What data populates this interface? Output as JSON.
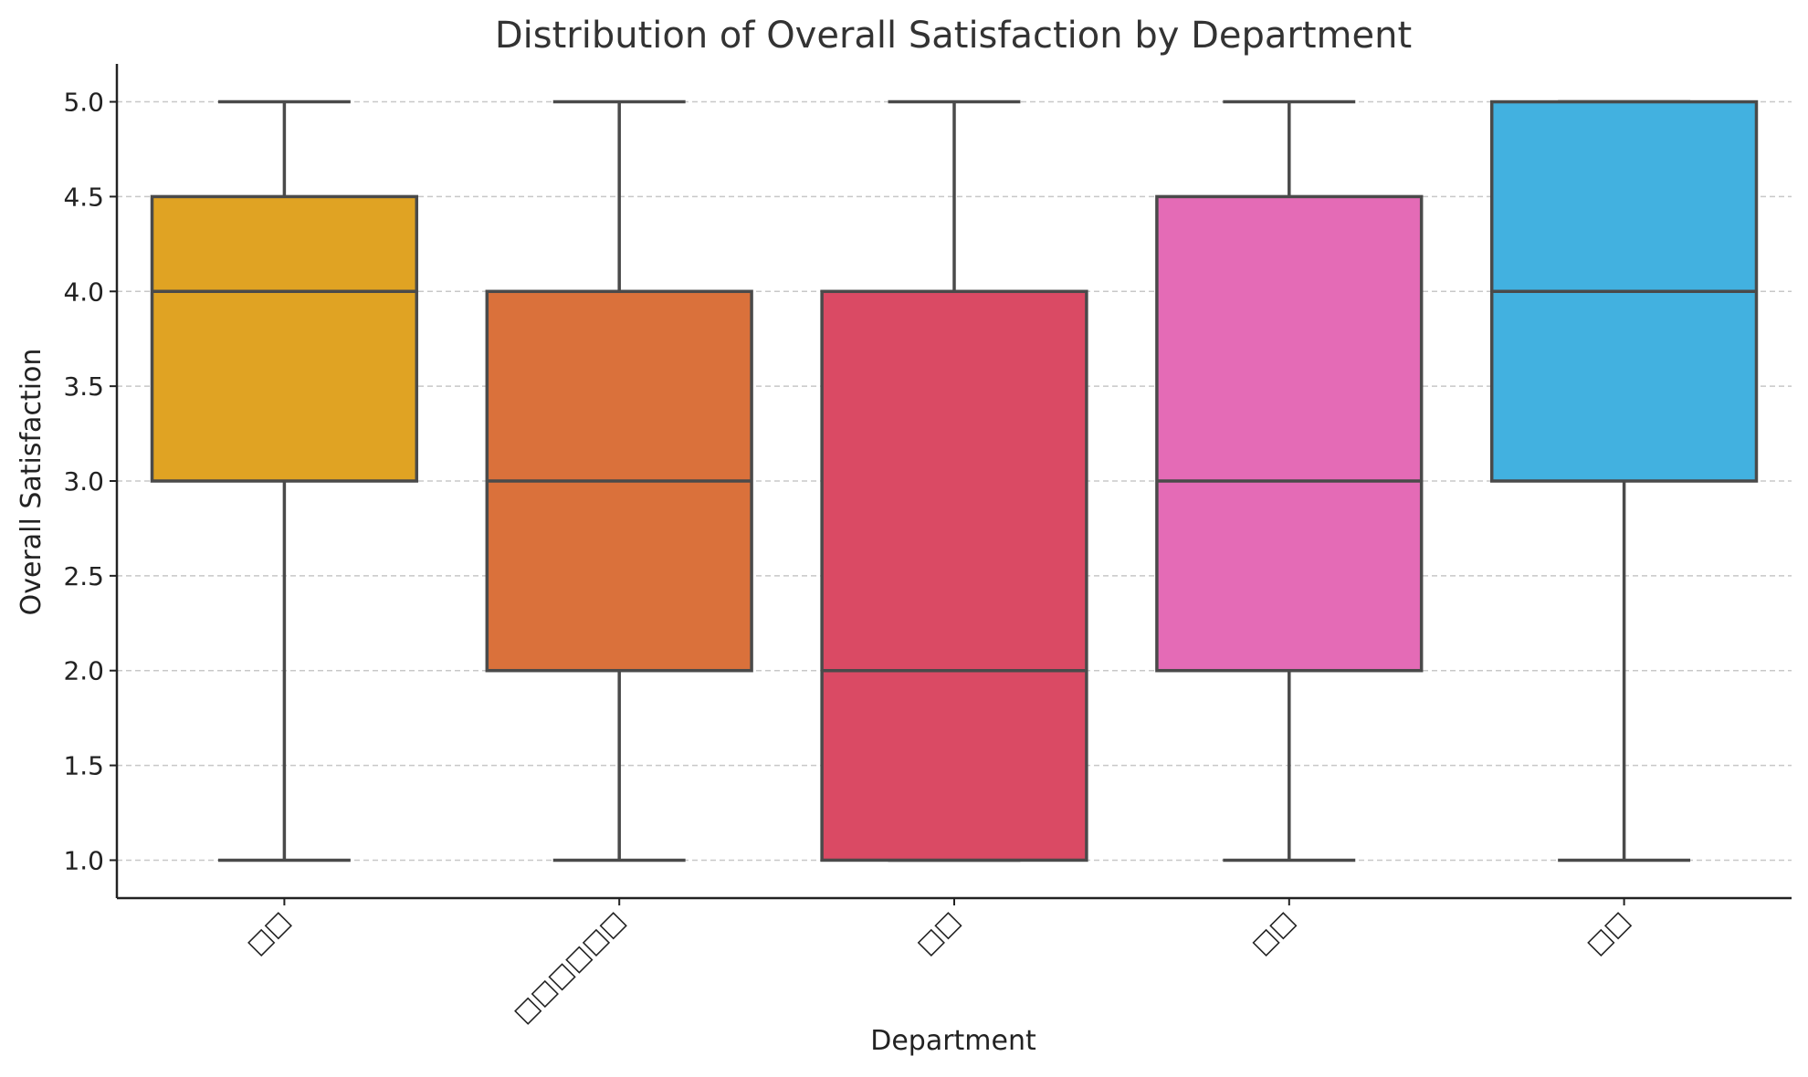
{
  "chart_data": {
    "type": "box",
    "title": "Distribution of Overall Satisfaction by Department",
    "xlabel": "Department",
    "ylabel": "Overall Satisfaction",
    "ylim": [
      0.8,
      5.2
    ],
    "yticks": [
      "1.0",
      "1.5",
      "2.0",
      "2.5",
      "3.0",
      "3.5",
      "4.0",
      "4.5",
      "5.0"
    ],
    "grid": "horizontal dashed",
    "categories": [
      "□□",
      "□□□□□□",
      "□□",
      "□□",
      "□□"
    ],
    "colors": [
      "#E0A323",
      "#DA713B",
      "#DA4A64",
      "#E46BB6",
      "#42B1E0"
    ],
    "boxes": [
      {
        "min": 1.0,
        "q1": 3.0,
        "median": 4.0,
        "q3": 4.5,
        "max": 5.0
      },
      {
        "min": 1.0,
        "q1": 2.0,
        "median": 3.0,
        "q3": 4.0,
        "max": 5.0
      },
      {
        "min": 1.0,
        "q1": 1.0,
        "median": 2.0,
        "q3": 4.0,
        "max": 5.0
      },
      {
        "min": 1.0,
        "q1": 2.0,
        "median": 3.0,
        "q3": 4.5,
        "max": 5.0
      },
      {
        "min": 1.0,
        "q1": 3.0,
        "median": 4.0,
        "q3": 5.0,
        "max": 5.0
      }
    ]
  }
}
